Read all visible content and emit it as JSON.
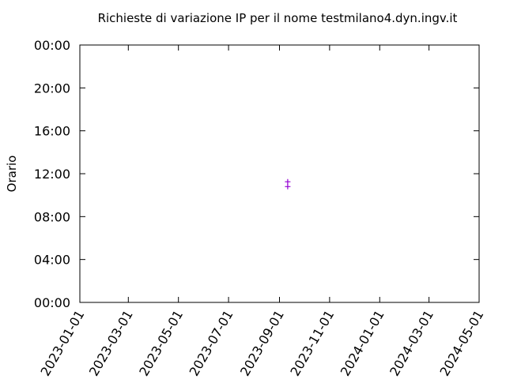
{
  "chart_data": {
    "type": "scatter",
    "title": "Richieste di variazione IP per il nome testmilano4.dyn.ingv.it",
    "y_label": "Orario",
    "x": [
      "2023-09-11",
      "2023-09-11"
    ],
    "values": [
      11.25,
      10.8
    ],
    "color": "#9400d3",
    "xlim": [
      "2023-01-01",
      "2024-05-01"
    ],
    "xticks": [
      "2023-01-01",
      "2023-03-01",
      "2023-05-01",
      "2023-07-01",
      "2023-09-01",
      "2023-11-01",
      "2024-01-01",
      "2024-03-01",
      "2024-05-01"
    ],
    "ylim": [
      0,
      24
    ],
    "yticks": [
      {
        "value": 0,
        "label": "00:00"
      },
      {
        "value": 4,
        "label": "04:00"
      },
      {
        "value": 8,
        "label": "08:00"
      },
      {
        "value": 12,
        "label": "12:00"
      },
      {
        "value": 16,
        "label": "16:00"
      },
      {
        "value": 20,
        "label": "20:00"
      },
      {
        "value": 24,
        "label": "00:00"
      }
    ]
  }
}
